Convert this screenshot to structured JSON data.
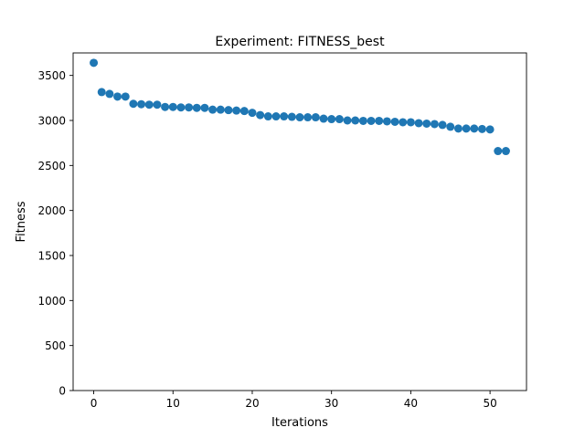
{
  "chart_data": {
    "type": "scatter",
    "title": "Experiment: FITNESS_best",
    "xlabel": "Iterations",
    "ylabel": "Fitness",
    "xlim": [
      -2.6,
      54.6
    ],
    "ylim": [
      0,
      3750
    ],
    "xticks": [
      0,
      10,
      20,
      30,
      40,
      50
    ],
    "yticks": [
      0,
      500,
      1000,
      1500,
      2000,
      2500,
      3000,
      3500
    ],
    "grid": false,
    "marker_color": "#1f77b4",
    "x": [
      0,
      1,
      2,
      3,
      4,
      5,
      6,
      7,
      8,
      9,
      10,
      11,
      12,
      13,
      14,
      15,
      16,
      17,
      18,
      19,
      20,
      21,
      22,
      23,
      24,
      25,
      26,
      27,
      28,
      29,
      30,
      31,
      32,
      33,
      34,
      35,
      36,
      37,
      38,
      39,
      40,
      41,
      42,
      43,
      44,
      45,
      46,
      47,
      48,
      49,
      50,
      51,
      52
    ],
    "y": [
      3640,
      3315,
      3295,
      3265,
      3265,
      3185,
      3180,
      3175,
      3175,
      3150,
      3150,
      3145,
      3145,
      3140,
      3140,
      3120,
      3120,
      3115,
      3110,
      3105,
      3085,
      3060,
      3045,
      3045,
      3045,
      3040,
      3035,
      3035,
      3035,
      3020,
      3015,
      3015,
      3000,
      3000,
      2995,
      2995,
      2995,
      2990,
      2985,
      2980,
      2980,
      2970,
      2965,
      2960,
      2950,
      2930,
      2910,
      2910,
      2910,
      2905,
      2900,
      2660,
      2660
    ]
  }
}
